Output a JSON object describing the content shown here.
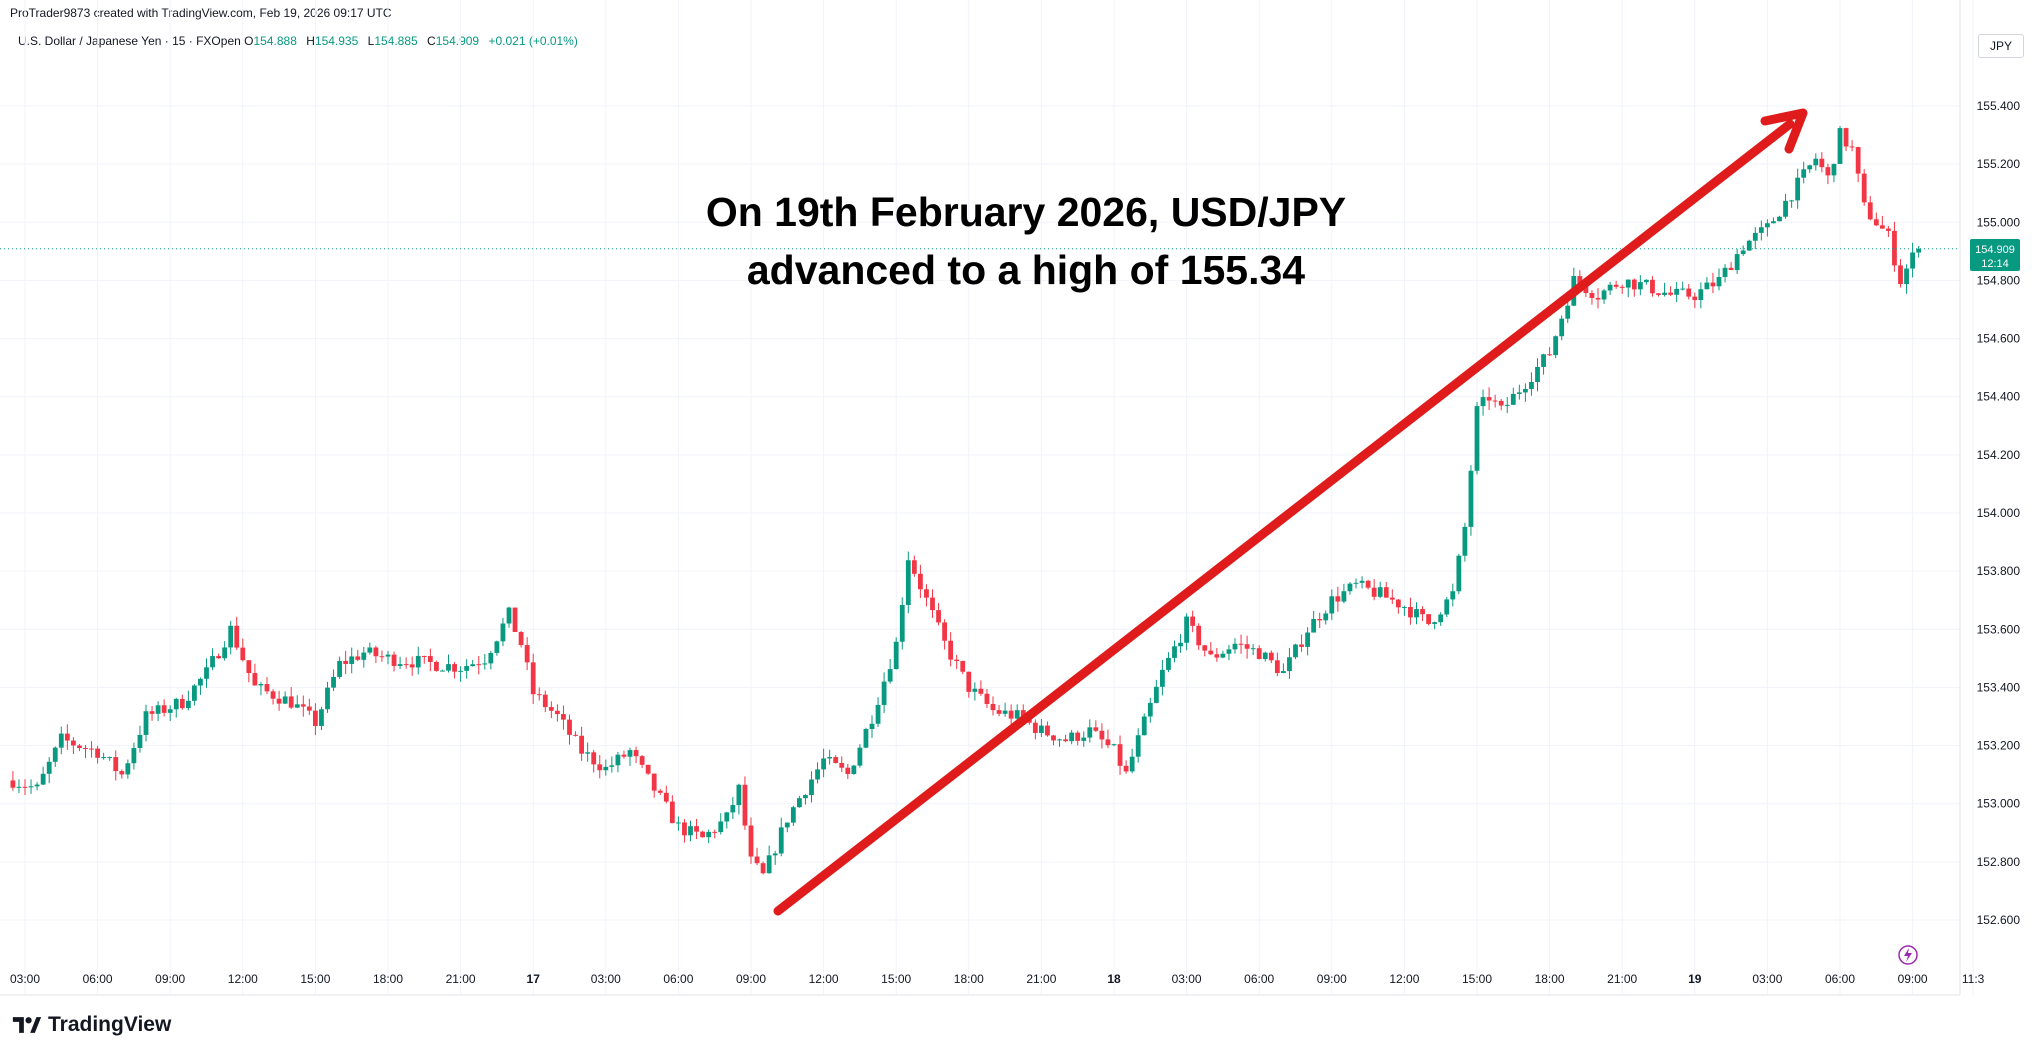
{
  "header": {
    "credit": "ProTrader9873 created with TradingView.com, Feb 19, 2026 09:17 UTC",
    "symbol": "U.S. Dollar / Japanese Yen · 15 · FXOpen",
    "open_label": "O",
    "open": "154.888",
    "high_label": "H",
    "high": "154.935",
    "low_label": "L",
    "low": "154.885",
    "close_label": "C",
    "close": "154.909",
    "change": "+0.021 (+0.01%)"
  },
  "price_axis": {
    "currency": "JPY",
    "current_price": "154.909",
    "countdown": "12:14"
  },
  "annotation": {
    "line1": "On 19th February 2026, USD/JPY",
    "line2": "advanced to a high of 155.34"
  },
  "brand": "TradingView",
  "colors": {
    "up": "#089981",
    "down": "#F23645",
    "arrow": "#E01B1B",
    "grid": "#F0F3FA",
    "price_line": "#089981"
  },
  "chart_data": {
    "type": "candlestick",
    "title": "U.S. Dollar / Japanese Yen · 15 · FXOpen",
    "ylim": [
      152.6,
      155.4
    ],
    "y_ticks": [
      "155.400",
      "155.200",
      "155.000",
      "154.800",
      "154.600",
      "154.400",
      "154.200",
      "154.000",
      "153.800",
      "153.600",
      "153.400",
      "153.200",
      "153.000",
      "152.800",
      "152.600"
    ],
    "x_ticks": [
      {
        "label": "03:00",
        "day": 16,
        "hour": 3
      },
      {
        "label": "06:00",
        "day": 16,
        "hour": 6
      },
      {
        "label": "09:00",
        "day": 16,
        "hour": 9
      },
      {
        "label": "12:00",
        "day": 16,
        "hour": 12
      },
      {
        "label": "15:00",
        "day": 16,
        "hour": 15
      },
      {
        "label": "18:00",
        "day": 16,
        "hour": 18
      },
      {
        "label": "21:00",
        "day": 16,
        "hour": 21
      },
      {
        "label": "17",
        "day": 17,
        "hour": 0,
        "bold": true
      },
      {
        "label": "03:00",
        "day": 17,
        "hour": 3
      },
      {
        "label": "06:00",
        "day": 17,
        "hour": 6
      },
      {
        "label": "09:00",
        "day": 17,
        "hour": 9
      },
      {
        "label": "12:00",
        "day": 17,
        "hour": 12
      },
      {
        "label": "15:00",
        "day": 17,
        "hour": 15
      },
      {
        "label": "18:00",
        "day": 17,
        "hour": 18
      },
      {
        "label": "21:00",
        "day": 17,
        "hour": 21
      },
      {
        "label": "18",
        "day": 18,
        "hour": 0,
        "bold": true
      },
      {
        "label": "03:00",
        "day": 18,
        "hour": 3
      },
      {
        "label": "06:00",
        "day": 18,
        "hour": 6
      },
      {
        "label": "09:00",
        "day": 18,
        "hour": 9
      },
      {
        "label": "12:00",
        "day": 18,
        "hour": 12
      },
      {
        "label": "15:00",
        "day": 18,
        "hour": 15
      },
      {
        "label": "18:00",
        "day": 18,
        "hour": 18
      },
      {
        "label": "21:00",
        "day": 18,
        "hour": 21
      },
      {
        "label": "19",
        "day": 19,
        "hour": 0,
        "bold": true
      },
      {
        "label": "03:00",
        "day": 19,
        "hour": 3
      },
      {
        "label": "06:00",
        "day": 19,
        "hour": 6
      },
      {
        "label": "09:00",
        "day": 19,
        "hour": 9
      },
      {
        "label": "11:3",
        "day": 19,
        "hour": 11.5
      }
    ],
    "price_path": [
      [
        16,
        2.5,
        153.08
      ],
      [
        16,
        3.5,
        153.05
      ],
      [
        16,
        4.5,
        153.22
      ],
      [
        16,
        6,
        153.18
      ],
      [
        16,
        7,
        153.1
      ],
      [
        16,
        8,
        153.3
      ],
      [
        16,
        9.5,
        153.35
      ],
      [
        16,
        10.5,
        153.45
      ],
      [
        16,
        11.5,
        153.6
      ],
      [
        16,
        12.5,
        153.4
      ],
      [
        16,
        14,
        153.35
      ],
      [
        16,
        15,
        153.28
      ],
      [
        16,
        16,
        153.48
      ],
      [
        16,
        17,
        153.52
      ],
      [
        16,
        18,
        153.5
      ],
      [
        16,
        20,
        153.48
      ],
      [
        16,
        21,
        153.47
      ],
      [
        16,
        22,
        153.5
      ],
      [
        16,
        23,
        153.65
      ],
      [
        16,
        23.5,
        153.55
      ],
      [
        17,
        0,
        153.38
      ],
      [
        17,
        1,
        153.3
      ],
      [
        17,
        2,
        153.18
      ],
      [
        17,
        3,
        153.12
      ],
      [
        17,
        4,
        153.18
      ],
      [
        17,
        5,
        153.05
      ],
      [
        17,
        6,
        152.92
      ],
      [
        17,
        7,
        152.88
      ],
      [
        17,
        8,
        152.95
      ],
      [
        17,
        8.5,
        153.05
      ],
      [
        17,
        9,
        152.8
      ],
      [
        17,
        9.5,
        152.75
      ],
      [
        17,
        10.5,
        152.95
      ],
      [
        17,
        11,
        153.02
      ],
      [
        17,
        12,
        153.15
      ],
      [
        17,
        13,
        153.1
      ],
      [
        17,
        14,
        153.3
      ],
      [
        17,
        15,
        153.55
      ],
      [
        17,
        15.5,
        153.85
      ],
      [
        17,
        16,
        153.75
      ],
      [
        17,
        17,
        153.55
      ],
      [
        17,
        18,
        153.4
      ],
      [
        17,
        19,
        153.32
      ],
      [
        17,
        20,
        153.3
      ],
      [
        17,
        21,
        153.25
      ],
      [
        17,
        22,
        153.22
      ],
      [
        17,
        23,
        153.25
      ],
      [
        18,
        0,
        153.18
      ],
      [
        18,
        0.5,
        153.1
      ],
      [
        18,
        1,
        153.22
      ],
      [
        18,
        2,
        153.45
      ],
      [
        18,
        3,
        153.62
      ],
      [
        18,
        4,
        153.5
      ],
      [
        18,
        5,
        153.55
      ],
      [
        18,
        6,
        153.52
      ],
      [
        18,
        7,
        153.45
      ],
      [
        18,
        8,
        153.6
      ],
      [
        18,
        9,
        153.7
      ],
      [
        18,
        10,
        153.75
      ],
      [
        18,
        11,
        153.72
      ],
      [
        18,
        12,
        153.68
      ],
      [
        18,
        13,
        153.62
      ],
      [
        18,
        14,
        153.72
      ],
      [
        18,
        14.5,
        153.95
      ],
      [
        18,
        15,
        154.35
      ],
      [
        18,
        15.5,
        154.4
      ],
      [
        18,
        16,
        154.35
      ],
      [
        18,
        17,
        154.45
      ],
      [
        18,
        18,
        154.55
      ],
      [
        18,
        19,
        154.8
      ],
      [
        18,
        20,
        154.75
      ],
      [
        18,
        21,
        154.8
      ],
      [
        18,
        22,
        154.78
      ],
      [
        18,
        23,
        154.75
      ],
      [
        19,
        0,
        154.75
      ],
      [
        19,
        1,
        154.8
      ],
      [
        19,
        2,
        154.92
      ],
      [
        19,
        3,
        154.98
      ],
      [
        19,
        4,
        155.1
      ],
      [
        19,
        5,
        155.22
      ],
      [
        19,
        5.5,
        155.15
      ],
      [
        19,
        6,
        155.3
      ],
      [
        19,
        6.5,
        155.25
      ],
      [
        19,
        7,
        155.05
      ],
      [
        19,
        7.5,
        155.0
      ],
      [
        19,
        8,
        154.95
      ],
      [
        19,
        8.5,
        154.8
      ],
      [
        19,
        9,
        154.88
      ],
      [
        19,
        9.28,
        154.909
      ]
    ],
    "series": [
      {
        "name": "USD/JPY 15m",
        "type": "candles"
      }
    ]
  }
}
